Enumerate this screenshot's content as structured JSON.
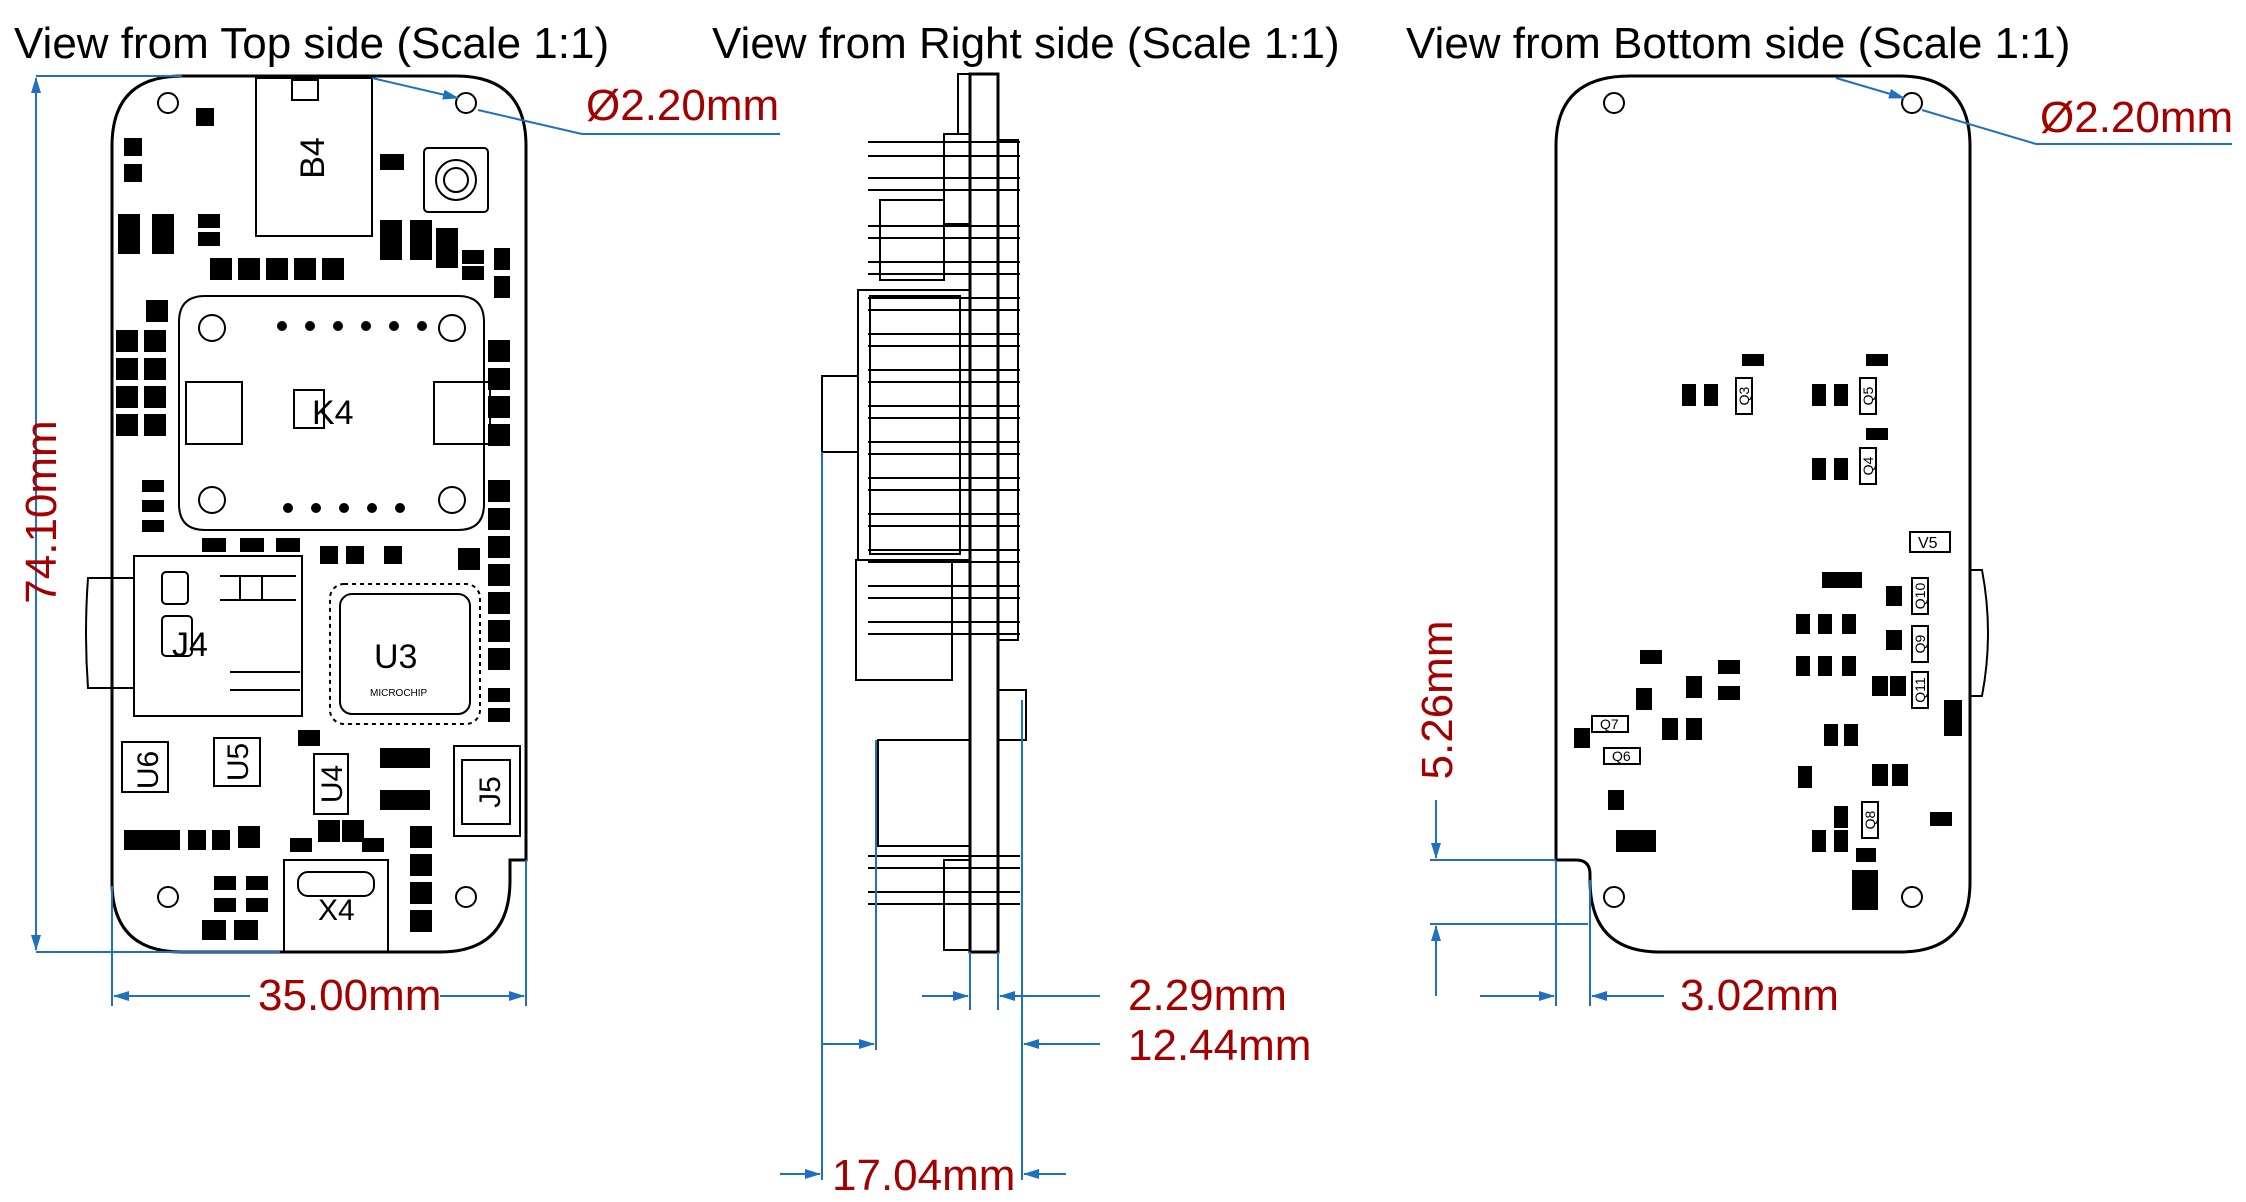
{
  "views": {
    "top": {
      "title": "View from Top side (Scale 1:1)"
    },
    "right": {
      "title": "View from Right side (Scale 1:1)"
    },
    "bottom": {
      "title": "View from Bottom side (Scale 1:1)"
    }
  },
  "dimensions": {
    "top_hole_diameter": "Ø2.20mm",
    "board_height": "74.10mm",
    "board_width": "35.00mm",
    "bottom_hole_diameter": "Ø2.20mm",
    "pcb_thickness": "2.29mm",
    "right_protrusion": "12.44mm",
    "total_depth": "17.04mm",
    "bottom_cut_height": "5.26mm",
    "bottom_cut_width": "3.02mm"
  },
  "components": {
    "top": {
      "b4": "B4",
      "k4": "K4",
      "j4": "J4",
      "u3": "U3",
      "u3_brand": "MICROCHIP",
      "u4": "U4",
      "u5": "U5",
      "u6": "U6",
      "j5": "J5",
      "x4": "X4"
    },
    "bottom": {
      "q3": "Q3",
      "q4": "Q4",
      "q5": "Q5",
      "q6": "Q6",
      "q7": "Q7",
      "q8": "Q8",
      "q9": "Q9",
      "q10": "Q10",
      "q11": "Q11",
      "v5": "V5"
    }
  },
  "colors": {
    "dimension_line": "#1f70c1",
    "dimension_text": "#a30000",
    "outline": "#000000"
  }
}
